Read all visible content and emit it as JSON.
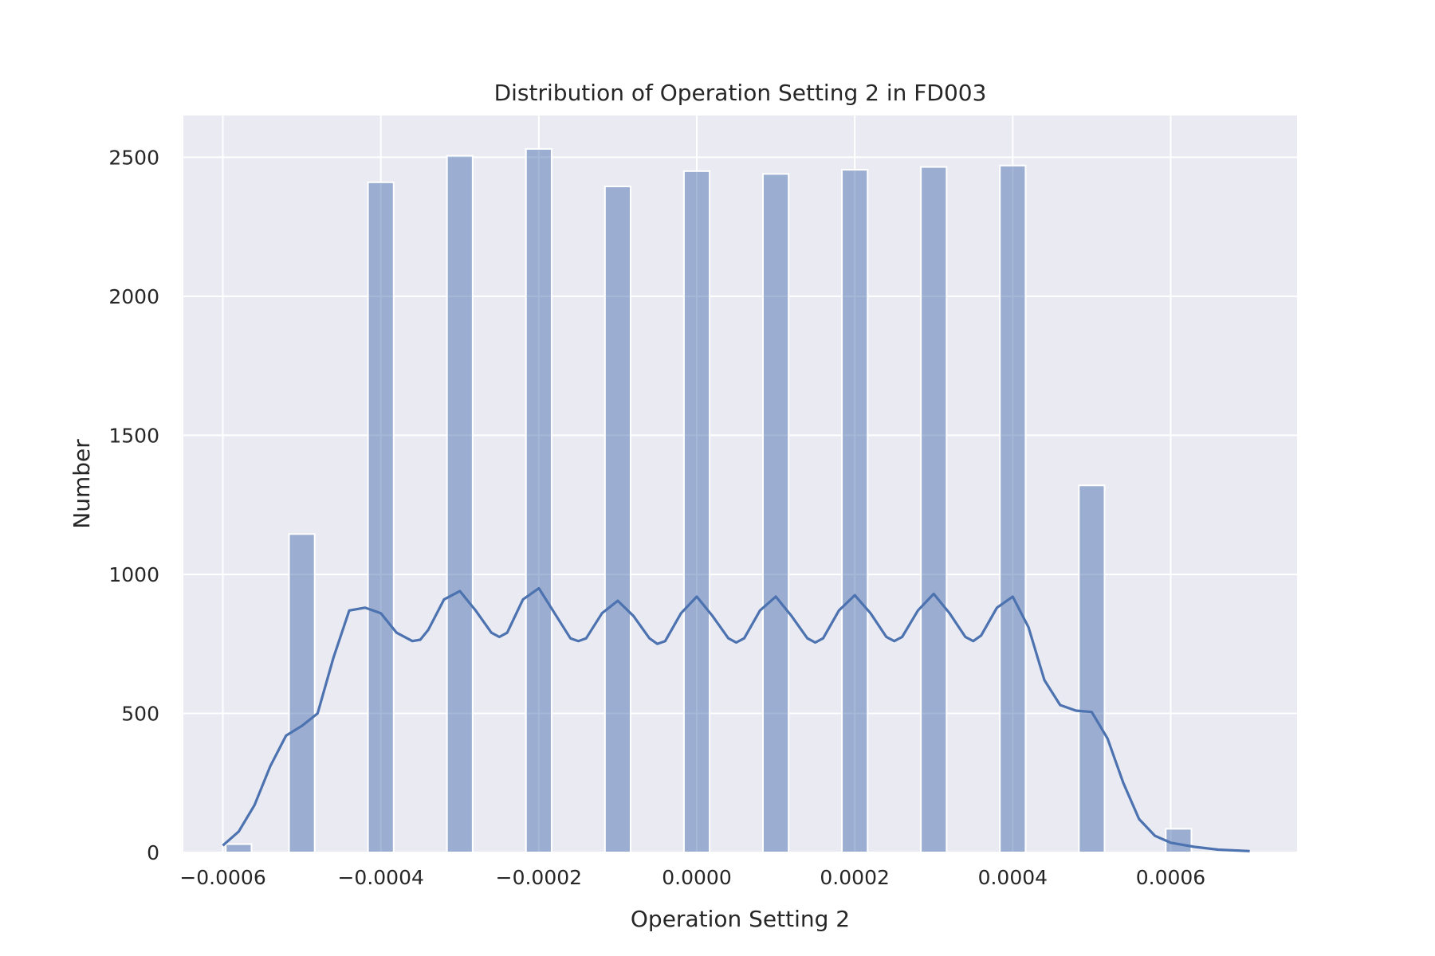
{
  "chart_data": {
    "type": "bar",
    "title": "Distribution of Operation Setting 2 in FD003",
    "xlabel": "Operation Setting 2",
    "ylabel": "Number",
    "xlim": [
      -0.00065,
      0.00076
    ],
    "ylim": [
      0,
      2650
    ],
    "xticks": [
      -0.0006,
      -0.0004,
      -0.0002,
      0.0,
      0.0002,
      0.0004,
      0.0006
    ],
    "xtick_labels": [
      "−0.0006",
      "−0.0004",
      "−0.0002",
      "0.0000",
      "0.0002",
      "0.0004",
      "0.0006"
    ],
    "yticks": [
      0,
      500,
      1000,
      1500,
      2000,
      2500
    ],
    "ytick_labels": [
      "0",
      "500",
      "1000",
      "1500",
      "2000",
      "2500"
    ],
    "grid": true,
    "bin_width": 3.25e-05,
    "bins": [
      {
        "x": -0.00058,
        "count": 30
      },
      {
        "x": -0.0005,
        "count": 1145
      },
      {
        "x": -0.0004,
        "count": 2410
      },
      {
        "x": -0.0003,
        "count": 2505
      },
      {
        "x": -0.0002,
        "count": 2530
      },
      {
        "x": -0.0001,
        "count": 2395
      },
      {
        "x": 0.0,
        "count": 2450
      },
      {
        "x": 0.0001,
        "count": 2440
      },
      {
        "x": 0.0002,
        "count": 2455
      },
      {
        "x": 0.0003,
        "count": 2465
      },
      {
        "x": 0.0004,
        "count": 2470
      },
      {
        "x": 0.0005,
        "count": 1320
      },
      {
        "x": 0.00061,
        "count": 85
      }
    ],
    "kde": {
      "x": [
        -0.0006,
        -0.00058,
        -0.00056,
        -0.00054,
        -0.00052,
        -0.0005,
        -0.00048,
        -0.00046,
        -0.00044,
        -0.00042,
        -0.0004,
        -0.00038,
        -0.00036,
        -0.00035,
        -0.00034,
        -0.00032,
        -0.0003,
        -0.00028,
        -0.00026,
        -0.00025,
        -0.00024,
        -0.00022,
        -0.0002,
        -0.00018,
        -0.00016,
        -0.00015,
        -0.00014,
        -0.00012,
        -0.0001,
        -8e-05,
        -6e-05,
        -5e-05,
        -4e-05,
        -2e-05,
        0.0,
        2e-05,
        4e-05,
        5e-05,
        6e-05,
        8e-05,
        0.0001,
        0.00012,
        0.00014,
        0.00015,
        0.00016,
        0.00018,
        0.0002,
        0.00022,
        0.00024,
        0.00025,
        0.00026,
        0.00028,
        0.0003,
        0.00032,
        0.00034,
        0.00035,
        0.00036,
        0.00038,
        0.0004,
        0.00042,
        0.00044,
        0.00046,
        0.00048,
        0.0005,
        0.00052,
        0.00054,
        0.00056,
        0.00058,
        0.0006,
        0.00063,
        0.00066,
        0.0007
      ],
      "y": [
        25,
        75,
        170,
        310,
        420,
        455,
        500,
        700,
        870,
        880,
        860,
        790,
        760,
        765,
        800,
        910,
        940,
        870,
        790,
        775,
        790,
        910,
        950,
        860,
        770,
        760,
        770,
        860,
        905,
        850,
        770,
        750,
        760,
        860,
        920,
        850,
        770,
        755,
        770,
        870,
        920,
        850,
        770,
        755,
        770,
        870,
        925,
        860,
        775,
        760,
        775,
        870,
        930,
        860,
        775,
        760,
        780,
        880,
        920,
        810,
        620,
        530,
        510,
        505,
        410,
        250,
        120,
        60,
        35,
        20,
        10,
        5
      ]
    }
  }
}
